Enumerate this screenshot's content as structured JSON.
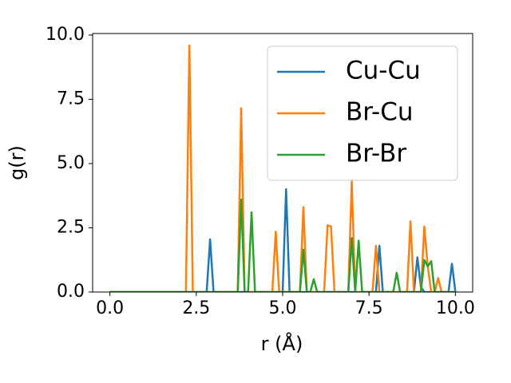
{
  "chart_data": {
    "type": "line",
    "xlabel": "r (Å)",
    "ylabel": "g(r)",
    "x": [
      0.0,
      0.1,
      0.2,
      0.3,
      0.4,
      0.5,
      0.6,
      0.7,
      0.8,
      0.9,
      1.0,
      1.1,
      1.2,
      1.3,
      1.4,
      1.5,
      1.6,
      1.7,
      1.8,
      1.9,
      2.0,
      2.1,
      2.2,
      2.3,
      2.4,
      2.5,
      2.6,
      2.7,
      2.8,
      2.9,
      3.0,
      3.1,
      3.2,
      3.3,
      3.4,
      3.5,
      3.6,
      3.7,
      3.8,
      3.9,
      4.0,
      4.1,
      4.2,
      4.3,
      4.4,
      4.5,
      4.6,
      4.7,
      4.8,
      4.9,
      5.0,
      5.1,
      5.2,
      5.3,
      5.4,
      5.5,
      5.6,
      5.7,
      5.8,
      5.9,
      6.0,
      6.1,
      6.2,
      6.3,
      6.4,
      6.5,
      6.6,
      6.7,
      6.8,
      6.9,
      7.0,
      7.1,
      7.2,
      7.3,
      7.4,
      7.5,
      7.6,
      7.7,
      7.8,
      7.9,
      8.0,
      8.1,
      8.2,
      8.3,
      8.4,
      8.5,
      8.6,
      8.7,
      8.8,
      8.9,
      9.0,
      9.1,
      9.2,
      9.3,
      9.4,
      9.5,
      9.6,
      9.7,
      9.8,
      9.9,
      10.0
    ],
    "series": [
      {
        "name": "Cu-Cu",
        "color": "#1f77b4",
        "values": [
          0,
          0,
          0,
          0,
          0,
          0,
          0,
          0,
          0,
          0,
          0,
          0,
          0,
          0,
          0,
          0,
          0,
          0,
          0,
          0,
          0,
          0,
          0,
          0,
          0,
          0,
          0,
          0,
          0,
          2.05,
          0,
          0,
          0,
          0,
          0,
          0,
          0,
          0,
          0,
          0,
          0,
          0,
          0,
          0,
          0,
          0,
          0,
          0,
          0,
          0,
          0,
          4.0,
          0,
          0,
          0,
          0,
          0,
          0,
          0,
          0,
          0,
          0,
          0,
          0,
          0,
          0,
          0,
          0,
          0,
          0,
          0,
          0,
          0,
          0,
          0,
          0,
          0,
          0,
          1.8,
          0,
          0,
          0,
          0,
          0,
          0,
          0,
          0,
          0,
          0,
          1.35,
          0.2,
          0,
          0,
          0,
          0,
          0,
          0,
          0,
          0,
          1.1,
          0
        ]
      },
      {
        "name": "Br-Cu",
        "color": "#ff7f0e",
        "values": [
          0,
          0,
          0,
          0,
          0,
          0,
          0,
          0,
          0,
          0,
          0,
          0,
          0,
          0,
          0,
          0,
          0,
          0,
          0,
          0,
          0,
          0,
          0,
          9.6,
          0,
          0,
          0,
          0,
          0,
          0,
          0,
          0,
          0,
          0,
          0,
          0,
          0,
          0,
          7.15,
          0,
          0,
          0,
          0,
          0,
          0,
          0,
          0,
          0,
          2.35,
          0,
          0,
          0,
          0,
          0,
          0,
          0,
          3.3,
          0,
          0,
          0,
          0,
          0,
          0,
          2.6,
          2.55,
          0,
          0,
          0,
          0,
          0,
          4.3,
          0,
          0,
          0,
          0,
          0,
          0,
          1.8,
          0,
          0,
          0,
          0,
          0,
          0,
          0,
          0,
          0,
          2.75,
          0,
          0,
          0,
          2.55,
          1.0,
          0,
          0,
          0.55,
          0,
          0,
          0,
          0,
          0
        ]
      },
      {
        "name": "Br-Br",
        "color": "#2ca02c",
        "values": [
          0,
          0,
          0,
          0,
          0,
          0,
          0,
          0,
          0,
          0,
          0,
          0,
          0,
          0,
          0,
          0,
          0,
          0,
          0,
          0,
          0,
          0,
          0,
          0,
          0,
          0,
          0,
          0,
          0,
          0,
          0,
          0,
          0,
          0,
          0,
          0,
          0,
          0,
          3.6,
          0,
          0,
          3.1,
          0,
          0,
          0,
          0,
          0,
          0,
          0,
          0,
          0,
          0,
          0,
          0,
          0,
          0,
          1.65,
          0,
          0,
          0.5,
          0,
          0,
          0,
          0,
          0,
          0,
          0,
          0,
          0,
          0,
          2.1,
          0,
          2.0,
          0,
          0,
          0,
          0,
          0,
          0,
          0,
          0,
          0,
          0,
          0.75,
          0,
          0,
          0,
          0,
          0,
          0,
          0,
          1.25,
          1.0,
          1.2,
          0,
          0,
          0,
          0,
          0,
          0,
          0
        ]
      }
    ],
    "xlim": [
      -0.5,
      10.5
    ],
    "ylim": [
      0,
      10.06
    ],
    "xticks": [
      {
        "value": 0,
        "label": "0.0"
      },
      {
        "value": 2.5,
        "label": "2.5"
      },
      {
        "value": 5,
        "label": "5.0"
      },
      {
        "value": 7.5,
        "label": "7.5"
      },
      {
        "value": 10,
        "label": "10.0"
      }
    ],
    "yticks": [
      {
        "value": 0,
        "label": "0.0"
      },
      {
        "value": 2.5,
        "label": "2.5"
      },
      {
        "value": 5,
        "label": "5.0"
      },
      {
        "value": 7.5,
        "label": "7.5"
      },
      {
        "value": 10,
        "label": "10.0"
      }
    ],
    "legend": "upper right",
    "grid": false
  }
}
